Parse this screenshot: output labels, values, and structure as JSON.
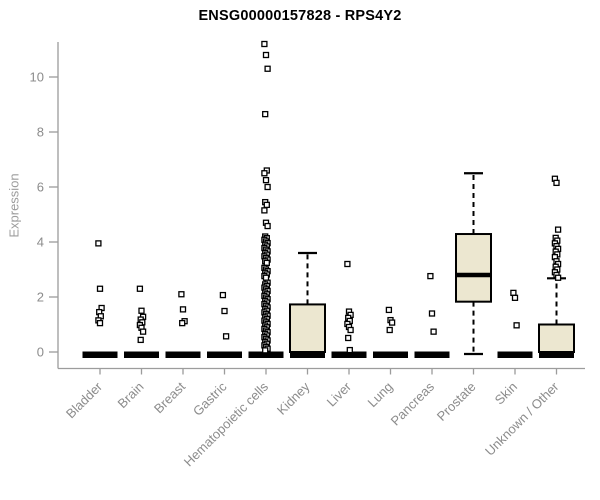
{
  "title": "ENSG00000157828 - RPS4Y2",
  "colors": {
    "box_fill": "#ece7d0",
    "box_border": "#000000",
    "median": "#000000",
    "whisker": "#000000",
    "point_fill": "#ffffff",
    "point_border": "#000000",
    "axis_line": "#9c9c9c",
    "tick_text": "#8c8c8c",
    "axis_label_text": "#9c9c9c",
    "title_text": "#000000",
    "background": "#ffffff"
  },
  "chart_data": {
    "type": "boxplot",
    "title": "ENSG00000157828 - RPS4Y2",
    "xlabel": "",
    "ylabel": "Expression",
    "ylim": [
      -0.6,
      11.5
    ],
    "yticks": [
      0,
      2,
      4,
      6,
      8,
      10
    ],
    "grid": false,
    "legend": "none",
    "categories": [
      "Bladder",
      "Brain",
      "Breast",
      "Gastric",
      "Hematopoietic cells",
      "Kidney",
      "Liver",
      "Lung",
      "Pancreas",
      "Prostate",
      "Skin",
      "Unknown / Other"
    ],
    "series": [
      {
        "name": "Bladder",
        "q1": 0,
        "median": 0,
        "q3": 0,
        "whisker_low": 0,
        "whisker_high": 0,
        "outliers": [
          3.95,
          2.3,
          1.6,
          1.45,
          1.3,
          1.15,
          1.05
        ]
      },
      {
        "name": "Brain",
        "q1": 0,
        "median": 0,
        "q3": 0,
        "whisker_low": 0,
        "whisker_high": 0,
        "outliers": [
          2.3,
          1.5,
          1.28,
          1.18,
          1.08,
          0.98,
          0.88,
          0.74,
          0.44
        ]
      },
      {
        "name": "Breast",
        "q1": 0,
        "median": 0,
        "q3": 0,
        "whisker_low": 0,
        "whisker_high": 0,
        "outliers": [
          2.1,
          1.55,
          1.12,
          1.05
        ]
      },
      {
        "name": "Gastric",
        "q1": 0,
        "median": 0,
        "q3": 0,
        "whisker_low": 0,
        "whisker_high": 0,
        "outliers": [
          2.07,
          1.49,
          0.57
        ]
      },
      {
        "name": "Hematopoietic cells",
        "q1": 0,
        "median": 0,
        "q3": 0,
        "whisker_low": 0,
        "whisker_high": 0,
        "outliers": [
          11.2,
          10.8,
          10.3,
          8.65,
          6.6,
          6.5,
          6.25,
          6.0,
          5.45,
          5.35,
          5.15,
          4.7,
          4.58,
          4.2,
          4.14,
          4.08,
          4.02,
          3.96,
          3.9,
          3.84,
          3.78,
          3.72,
          3.66,
          3.6,
          3.54,
          3.48,
          3.42,
          3.36,
          3.3,
          3.24,
          3.06,
          3.0,
          2.94,
          2.88,
          2.82,
          2.76,
          2.7,
          2.52,
          2.46,
          2.4,
          2.34,
          2.28,
          2.22,
          2.16,
          2.1,
          2.04,
          1.98,
          1.92,
          1.86,
          1.8,
          1.74,
          1.68,
          1.62,
          1.56,
          1.5,
          1.44,
          1.38,
          1.32,
          1.26,
          1.2,
          1.14,
          1.08,
          1.02,
          0.96,
          0.9,
          0.84,
          0.78,
          0.72,
          0.66,
          0.6,
          0.54,
          0.48,
          0.42,
          0.36,
          0.3,
          0.24,
          0.18,
          0.12,
          0.06
        ]
      },
      {
        "name": "Kidney",
        "q1": 0,
        "median": 0.05,
        "q3": 1.73,
        "whisker_low": 0,
        "whisker_high": 3.6,
        "outliers": []
      },
      {
        "name": "Liver",
        "q1": 0,
        "median": 0,
        "q3": 0,
        "whisker_low": 0,
        "whisker_high": 0,
        "outliers": [
          3.2,
          1.47,
          1.35,
          1.24,
          1.13,
          1.02,
          0.91,
          0.8,
          0.51,
          0.07
        ]
      },
      {
        "name": "Lung",
        "q1": 0,
        "median": 0,
        "q3": 0,
        "whisker_low": 0,
        "whisker_high": 0,
        "outliers": [
          1.53,
          1.16,
          1.07,
          0.8
        ]
      },
      {
        "name": "Pancreas",
        "q1": 0,
        "median": 0,
        "q3": 0,
        "whisker_low": 0,
        "whisker_high": 0,
        "outliers": [
          2.76,
          1.4,
          0.74
        ]
      },
      {
        "name": "Prostate",
        "q1": 1.83,
        "median": 2.8,
        "q3": 4.29,
        "whisker_low": 0,
        "whisker_high": 6.5,
        "outliers": []
      },
      {
        "name": "Skin",
        "q1": 0,
        "median": 0,
        "q3": 0,
        "whisker_low": 0,
        "whisker_high": 0,
        "outliers": [
          2.15,
          1.97,
          0.97
        ]
      },
      {
        "name": "Unknown / Other",
        "q1": 0,
        "median": 0.05,
        "q3": 1.0,
        "whisker_low": 0,
        "whisker_high": 2.68,
        "outliers": [
          6.3,
          6.15,
          4.45,
          4.15,
          4.05,
          3.95,
          3.85,
          3.75,
          3.65,
          3.55,
          3.45,
          3.3,
          3.2,
          3.1,
          3.0,
          2.9,
          2.8,
          2.7
        ]
      }
    ]
  }
}
